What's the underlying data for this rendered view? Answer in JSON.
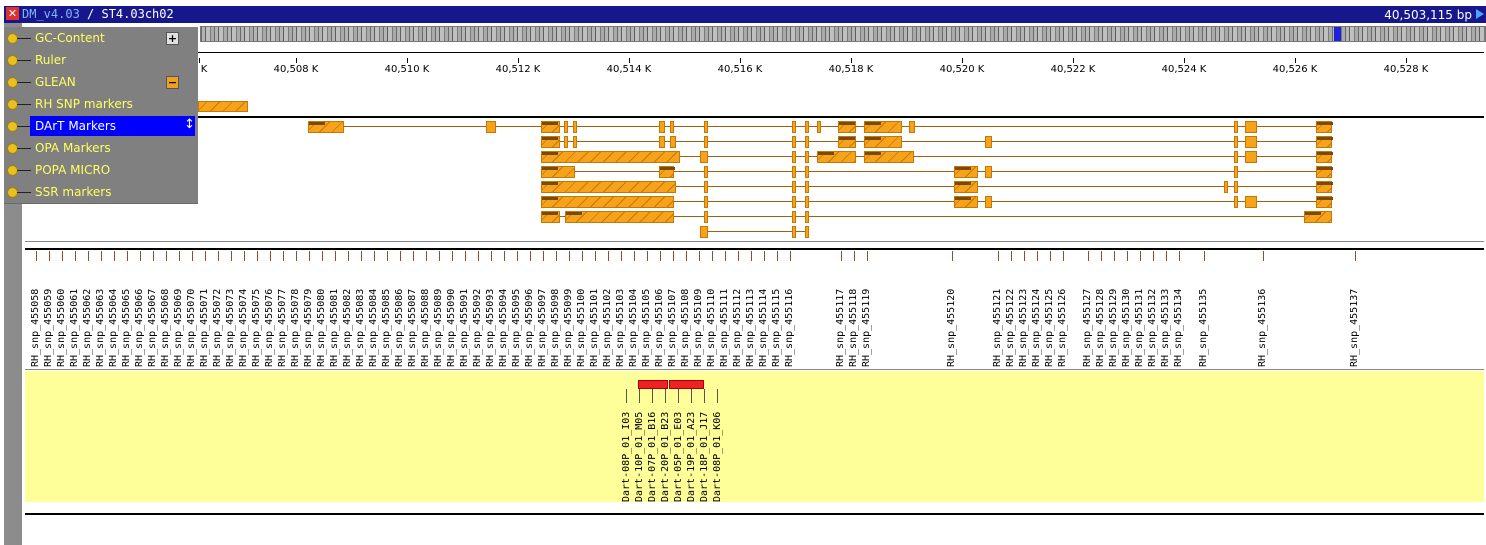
{
  "titlebar": {
    "database": "DM_v4.03",
    "separator": " / ",
    "sequence": "ST4.03ch02",
    "length": "40,503,115 bp"
  },
  "menu": {
    "items": [
      {
        "label": "GC-Content",
        "toggle": "+"
      },
      {
        "label": "Ruler",
        "toggle": ""
      },
      {
        "label": "GLEAN",
        "toggle": "−"
      },
      {
        "label": "RH SNP markers",
        "toggle": ""
      },
      {
        "label": "DArT Markers",
        "toggle": "",
        "selected": true
      },
      {
        "label": "OPA Markers",
        "toggle": ""
      },
      {
        "label": "POPA MICRO",
        "toggle": ""
      },
      {
        "label": "SSR markers",
        "toggle": ""
      }
    ]
  },
  "ruler": {
    "ticks": [
      "K",
      "40,508 K",
      "40,510 K",
      "40,512 K",
      "40,514 K",
      "40,516 K",
      "40,518 K",
      "40,520 K",
      "40,522 K",
      "40,524 K",
      "40,526 K",
      "40,528 K"
    ]
  },
  "snp_markers": [
    "RH_snp_455058",
    "RH_snp_455059",
    "RH_snp_455060",
    "RH_snp_455061",
    "RH_snp_455062",
    "RH_snp_455063",
    "RH_snp_455064",
    "RH_snp_455065",
    "RH_snp_455066",
    "RH_snp_455067",
    "RH_snp_455068",
    "RH_snp_455069",
    "RH_snp_455070",
    "RH_snp_455071",
    "RH_snp_455072",
    "RH_snp_455073",
    "RH_snp_455074",
    "RH_snp_455075",
    "RH_snp_455076",
    "RH_snp_455077",
    "RH_snp_455078",
    "RH_snp_455079",
    "RH_snp_455080",
    "RH_snp_455081",
    "RH_snp_455082",
    "RH_snp_455083",
    "RH_snp_455084",
    "RH_snp_455085",
    "RH_snp_455086",
    "RH_snp_455087",
    "RH_snp_455088",
    "RH_snp_455089",
    "RH_snp_455090",
    "RH_snp_455091",
    "RH_snp_455092",
    "RH_snp_455093",
    "RH_snp_455094",
    "RH_snp_455095",
    "RH_snp_455096",
    "RH_snp_455097",
    "RH_snp_455098",
    "RH_snp_455099",
    "RH_snp_455100",
    "RH_snp_455101",
    "RH_snp_455102",
    "RH_snp_455103",
    "RH_snp_455104",
    "RH_snp_455105",
    "RH_snp_455106",
    "RH_snp_455107",
    "RH_snp_455108",
    "RH_snp_455109",
    "RH_snp_455110",
    "RH_snp_455111",
    "RH_snp_455112",
    "RH_snp_455113",
    "RH_snp_455114",
    "RH_snp_455115",
    "RH_snp_455116",
    "RH_snp_455117",
    "RH_snp_455118",
    "RH_snp_455119",
    "RH_snp_455120",
    "RH_snp_455121",
    "RH_snp_455122",
    "RH_snp_455123",
    "RH_snp_455124",
    "RH_snp_455125",
    "RH_snp_455126",
    "RH_snp_455127",
    "RH_snp_455128",
    "RH_snp_455129",
    "RH_snp_455130",
    "RH_snp_455131",
    "RH_snp_455132",
    "RH_snp_455133",
    "RH_snp_455134",
    "RH_snp_455135",
    "RH_snp_455136",
    "RH_snp_455137"
  ],
  "dart_markers": [
    "Dart-08P_01_I03",
    "Dart-10P_01_M05",
    "Dart-07P_01_B16",
    "Dart-20P_01_B23",
    "Dart-05P_01_E03",
    "Dart-19P_01_A23",
    "Dart-18P_01_J17",
    "Dart-08P_01_K06"
  ],
  "colors": {
    "titlebar": "#17178d",
    "gene": "#f7a21b",
    "dart_panel": "#ffff99",
    "dart_bar": "#ee2222",
    "selection": "#0000ff"
  }
}
